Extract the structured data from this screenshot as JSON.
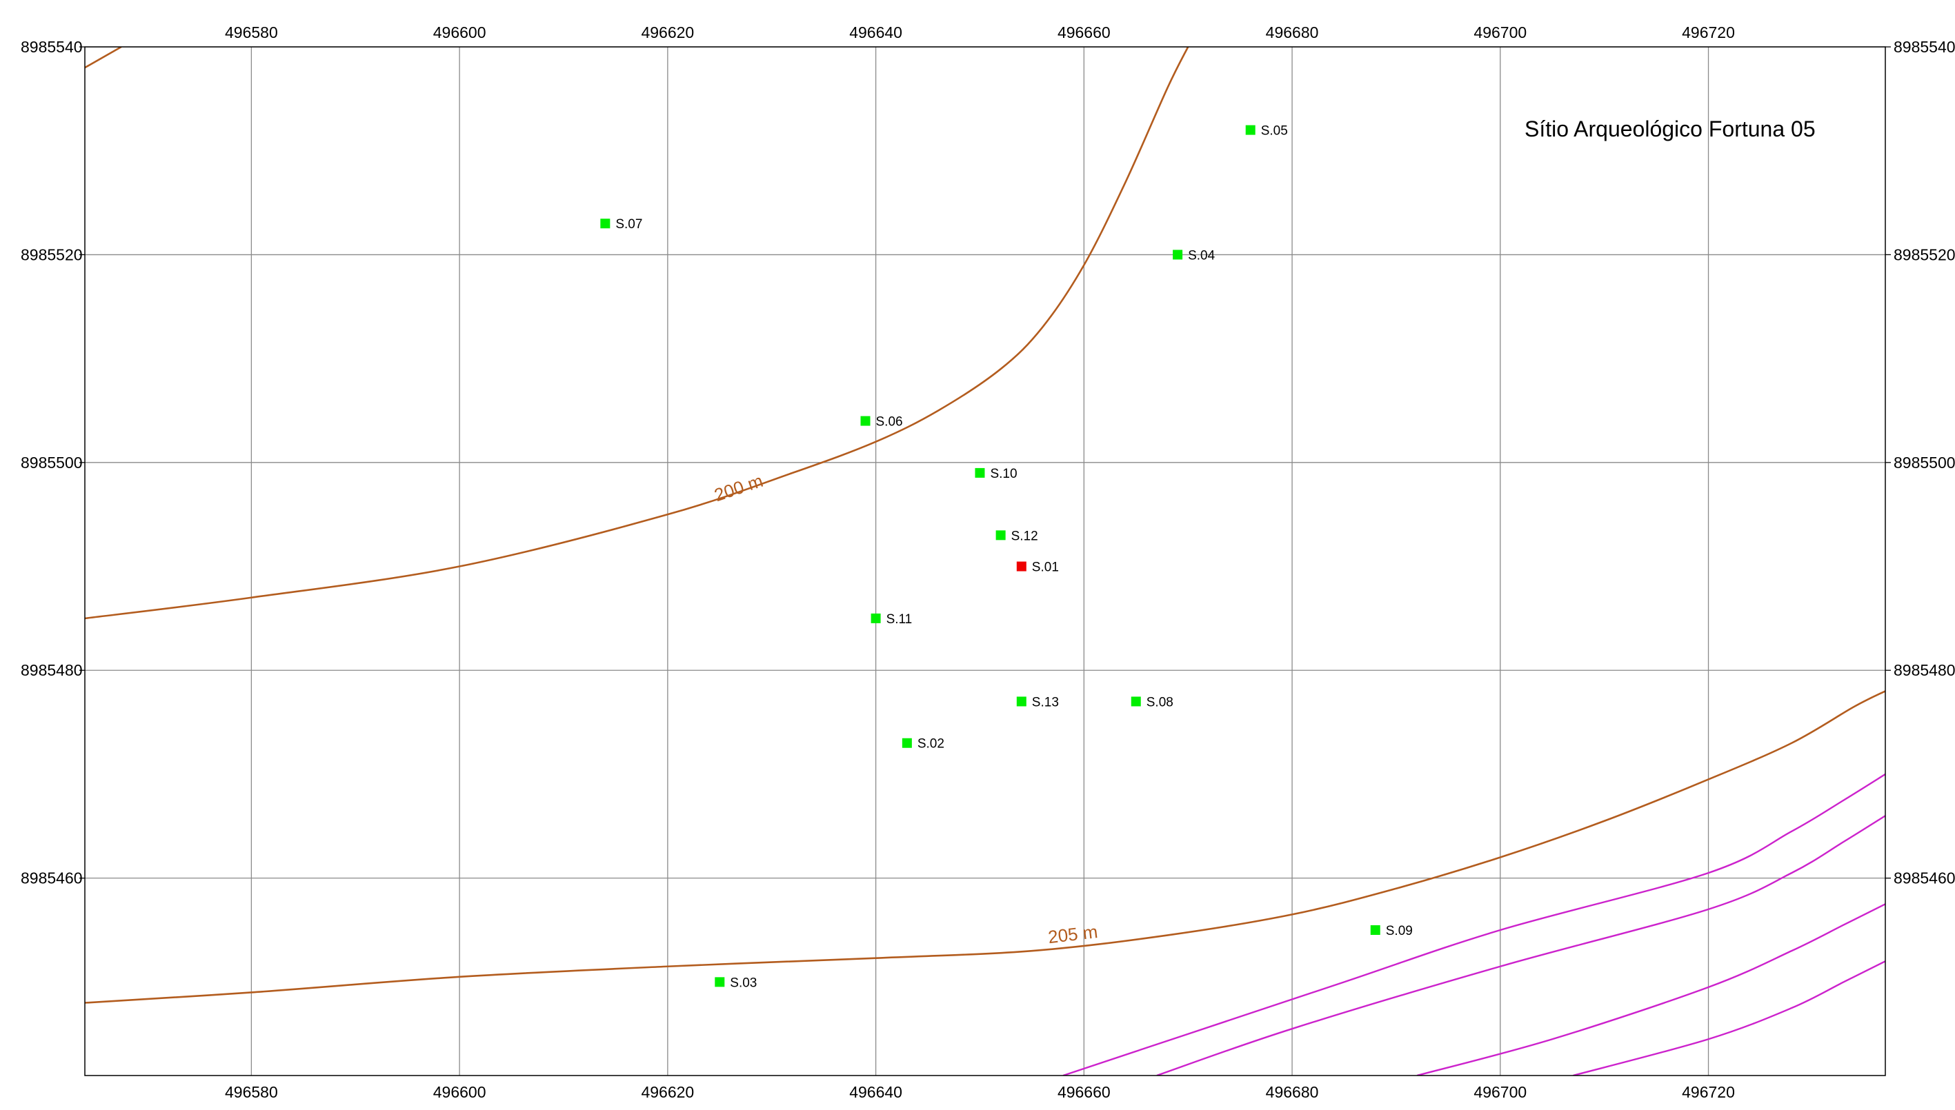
{
  "map": {
    "title": "Sítio Arqueológico Fortuna 05",
    "x_range": [
      496564,
      496737
    ],
    "y_range": [
      8985441,
      8985540
    ],
    "x_ticks": [
      496580,
      496600,
      496620,
      496640,
      496660,
      496680,
      496700,
      496720
    ],
    "y_ticks": [
      8985460,
      8985480,
      8985500,
      8985520,
      8985540
    ],
    "grid": true,
    "colors": {
      "grid": "#8a8a8a",
      "contour": "#b35c1e",
      "stream": "#cc22cc",
      "point_normal": "#00ee00",
      "point_highlight": "#ee0000"
    },
    "contours": [
      {
        "label": "200 m",
        "label_at": [
          496627,
          8985497
        ],
        "points": [
          [
            496564,
            8985485
          ],
          [
            496580,
            8985487
          ],
          [
            496600,
            8985490
          ],
          [
            496620,
            8985495
          ],
          [
            496632,
            8985499
          ],
          [
            496640,
            8985502
          ],
          [
            496646,
            8985505
          ],
          [
            496652,
            8985509
          ],
          [
            496656,
            8985513
          ],
          [
            496660,
            8985519
          ],
          [
            496664,
            8985527
          ],
          [
            496668,
            8985536
          ],
          [
            496670,
            8985540
          ]
        ]
      },
      {
        "label": "",
        "label_at": null,
        "points": [
          [
            496564,
            8985538
          ],
          [
            496567.5,
            8985540
          ]
        ]
      },
      {
        "label": "205 m",
        "label_at": [
          496659,
          8985454
        ],
        "points": [
          [
            496564,
            8985448
          ],
          [
            496580,
            8985449
          ],
          [
            496600,
            8985450.5
          ],
          [
            496620,
            8985451.5
          ],
          [
            496640,
            8985452.3
          ],
          [
            496655,
            8985453
          ],
          [
            496668,
            8985454.5
          ],
          [
            496680,
            8985456.5
          ],
          [
            496690,
            8985459
          ],
          [
            496700,
            8985462
          ],
          [
            496710,
            8985465.5
          ],
          [
            496720,
            8985469.5
          ],
          [
            496728,
            8985473
          ],
          [
            496734,
            8985476.5
          ],
          [
            496737,
            8985478
          ]
        ]
      }
    ],
    "streams": [
      [
        [
          496658,
          8985441
        ],
        [
          496670,
          8985445
        ],
        [
          496685,
          8985450
        ],
        [
          496700,
          8985455
        ],
        [
          496720,
          8985460.5
        ],
        [
          496728,
          8985464.5
        ],
        [
          496733,
          8985467.5
        ],
        [
          496737,
          8985470
        ]
      ],
      [
        [
          496667,
          8985441
        ],
        [
          496680,
          8985445.5
        ],
        [
          496700,
          8985451.5
        ],
        [
          496720,
          8985457
        ],
        [
          496728,
          8985460.5
        ],
        [
          496733,
          8985463.5
        ],
        [
          496737,
          8985466
        ]
      ],
      [
        [
          496692,
          8985441
        ],
        [
          496705,
          8985444.5
        ],
        [
          496720,
          8985449.5
        ],
        [
          496728,
          8985453
        ],
        [
          496733,
          8985455.5
        ],
        [
          496737,
          8985457.5
        ]
      ],
      [
        [
          496707,
          8985441
        ],
        [
          496720,
          8985444.5
        ],
        [
          496728,
          8985447.5
        ],
        [
          496733,
          8985450
        ],
        [
          496737,
          8985452
        ]
      ]
    ],
    "points": [
      {
        "label": "S.01",
        "x": 496654,
        "y": 8985490,
        "status": "highlight"
      },
      {
        "label": "S.02",
        "x": 496643,
        "y": 8985473,
        "status": "normal"
      },
      {
        "label": "S.03",
        "x": 496625,
        "y": 8985450,
        "status": "normal"
      },
      {
        "label": "S.04",
        "x": 496669,
        "y": 8985520,
        "status": "normal"
      },
      {
        "label": "S.05",
        "x": 496676,
        "y": 8985532,
        "status": "normal"
      },
      {
        "label": "S.06",
        "x": 496639,
        "y": 8985504,
        "status": "normal"
      },
      {
        "label": "S.07",
        "x": 496614,
        "y": 8985523,
        "status": "normal"
      },
      {
        "label": "S.08",
        "x": 496665,
        "y": 8985477,
        "status": "normal"
      },
      {
        "label": "S.09",
        "x": 496688,
        "y": 8985455,
        "status": "normal"
      },
      {
        "label": "S.10",
        "x": 496650,
        "y": 8985499,
        "status": "normal"
      },
      {
        "label": "S.11",
        "x": 496640,
        "y": 8985485,
        "status": "normal"
      },
      {
        "label": "S.12",
        "x": 496652,
        "y": 8985493,
        "status": "normal"
      },
      {
        "label": "S.13",
        "x": 496654,
        "y": 8985477,
        "status": "normal"
      }
    ]
  }
}
